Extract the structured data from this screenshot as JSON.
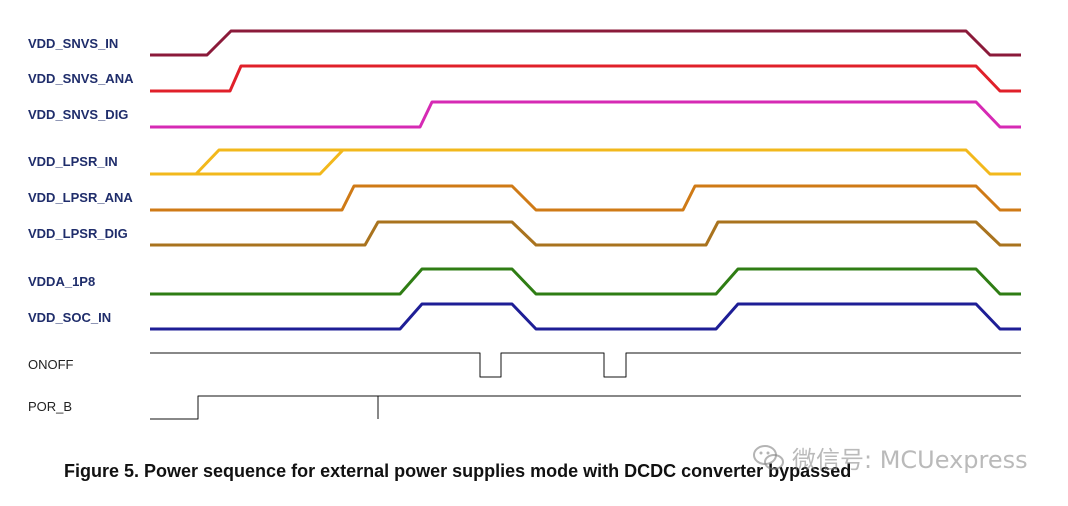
{
  "signals": [
    {
      "name": "VDD_SNVS_IN",
      "color": "#8b1a3a",
      "bold": true
    },
    {
      "name": "VDD_SNVS_ANA",
      "color": "#e0202a",
      "bold": true
    },
    {
      "name": "VDD_SNVS_DIG",
      "color": "#d62ab4",
      "bold": true
    },
    {
      "name": "VDD_LPSR_IN",
      "color": "#f2b81c",
      "bold": true
    },
    {
      "name": "VDD_LPSR_ANA",
      "color": "#cf7a16",
      "bold": true
    },
    {
      "name": "VDD_LPSR_DIG",
      "color": "#a9731e",
      "bold": true
    },
    {
      "name": "VDDA_1P8",
      "color": "#2f7d14",
      "bold": true
    },
    {
      "name": "VDD_SOC_IN",
      "color": "#1e1e96",
      "bold": true
    },
    {
      "name": "ONOFF",
      "color": "#111111",
      "bold": false
    },
    {
      "name": "POR_B",
      "color": "#111111",
      "bold": false
    }
  ],
  "caption": "Figure 5. Power sequence for external power supplies mode with DCDC converter bypassed",
  "watermark": {
    "icon": "wechat-icon",
    "text": "微信号: MCUexpress"
  }
}
